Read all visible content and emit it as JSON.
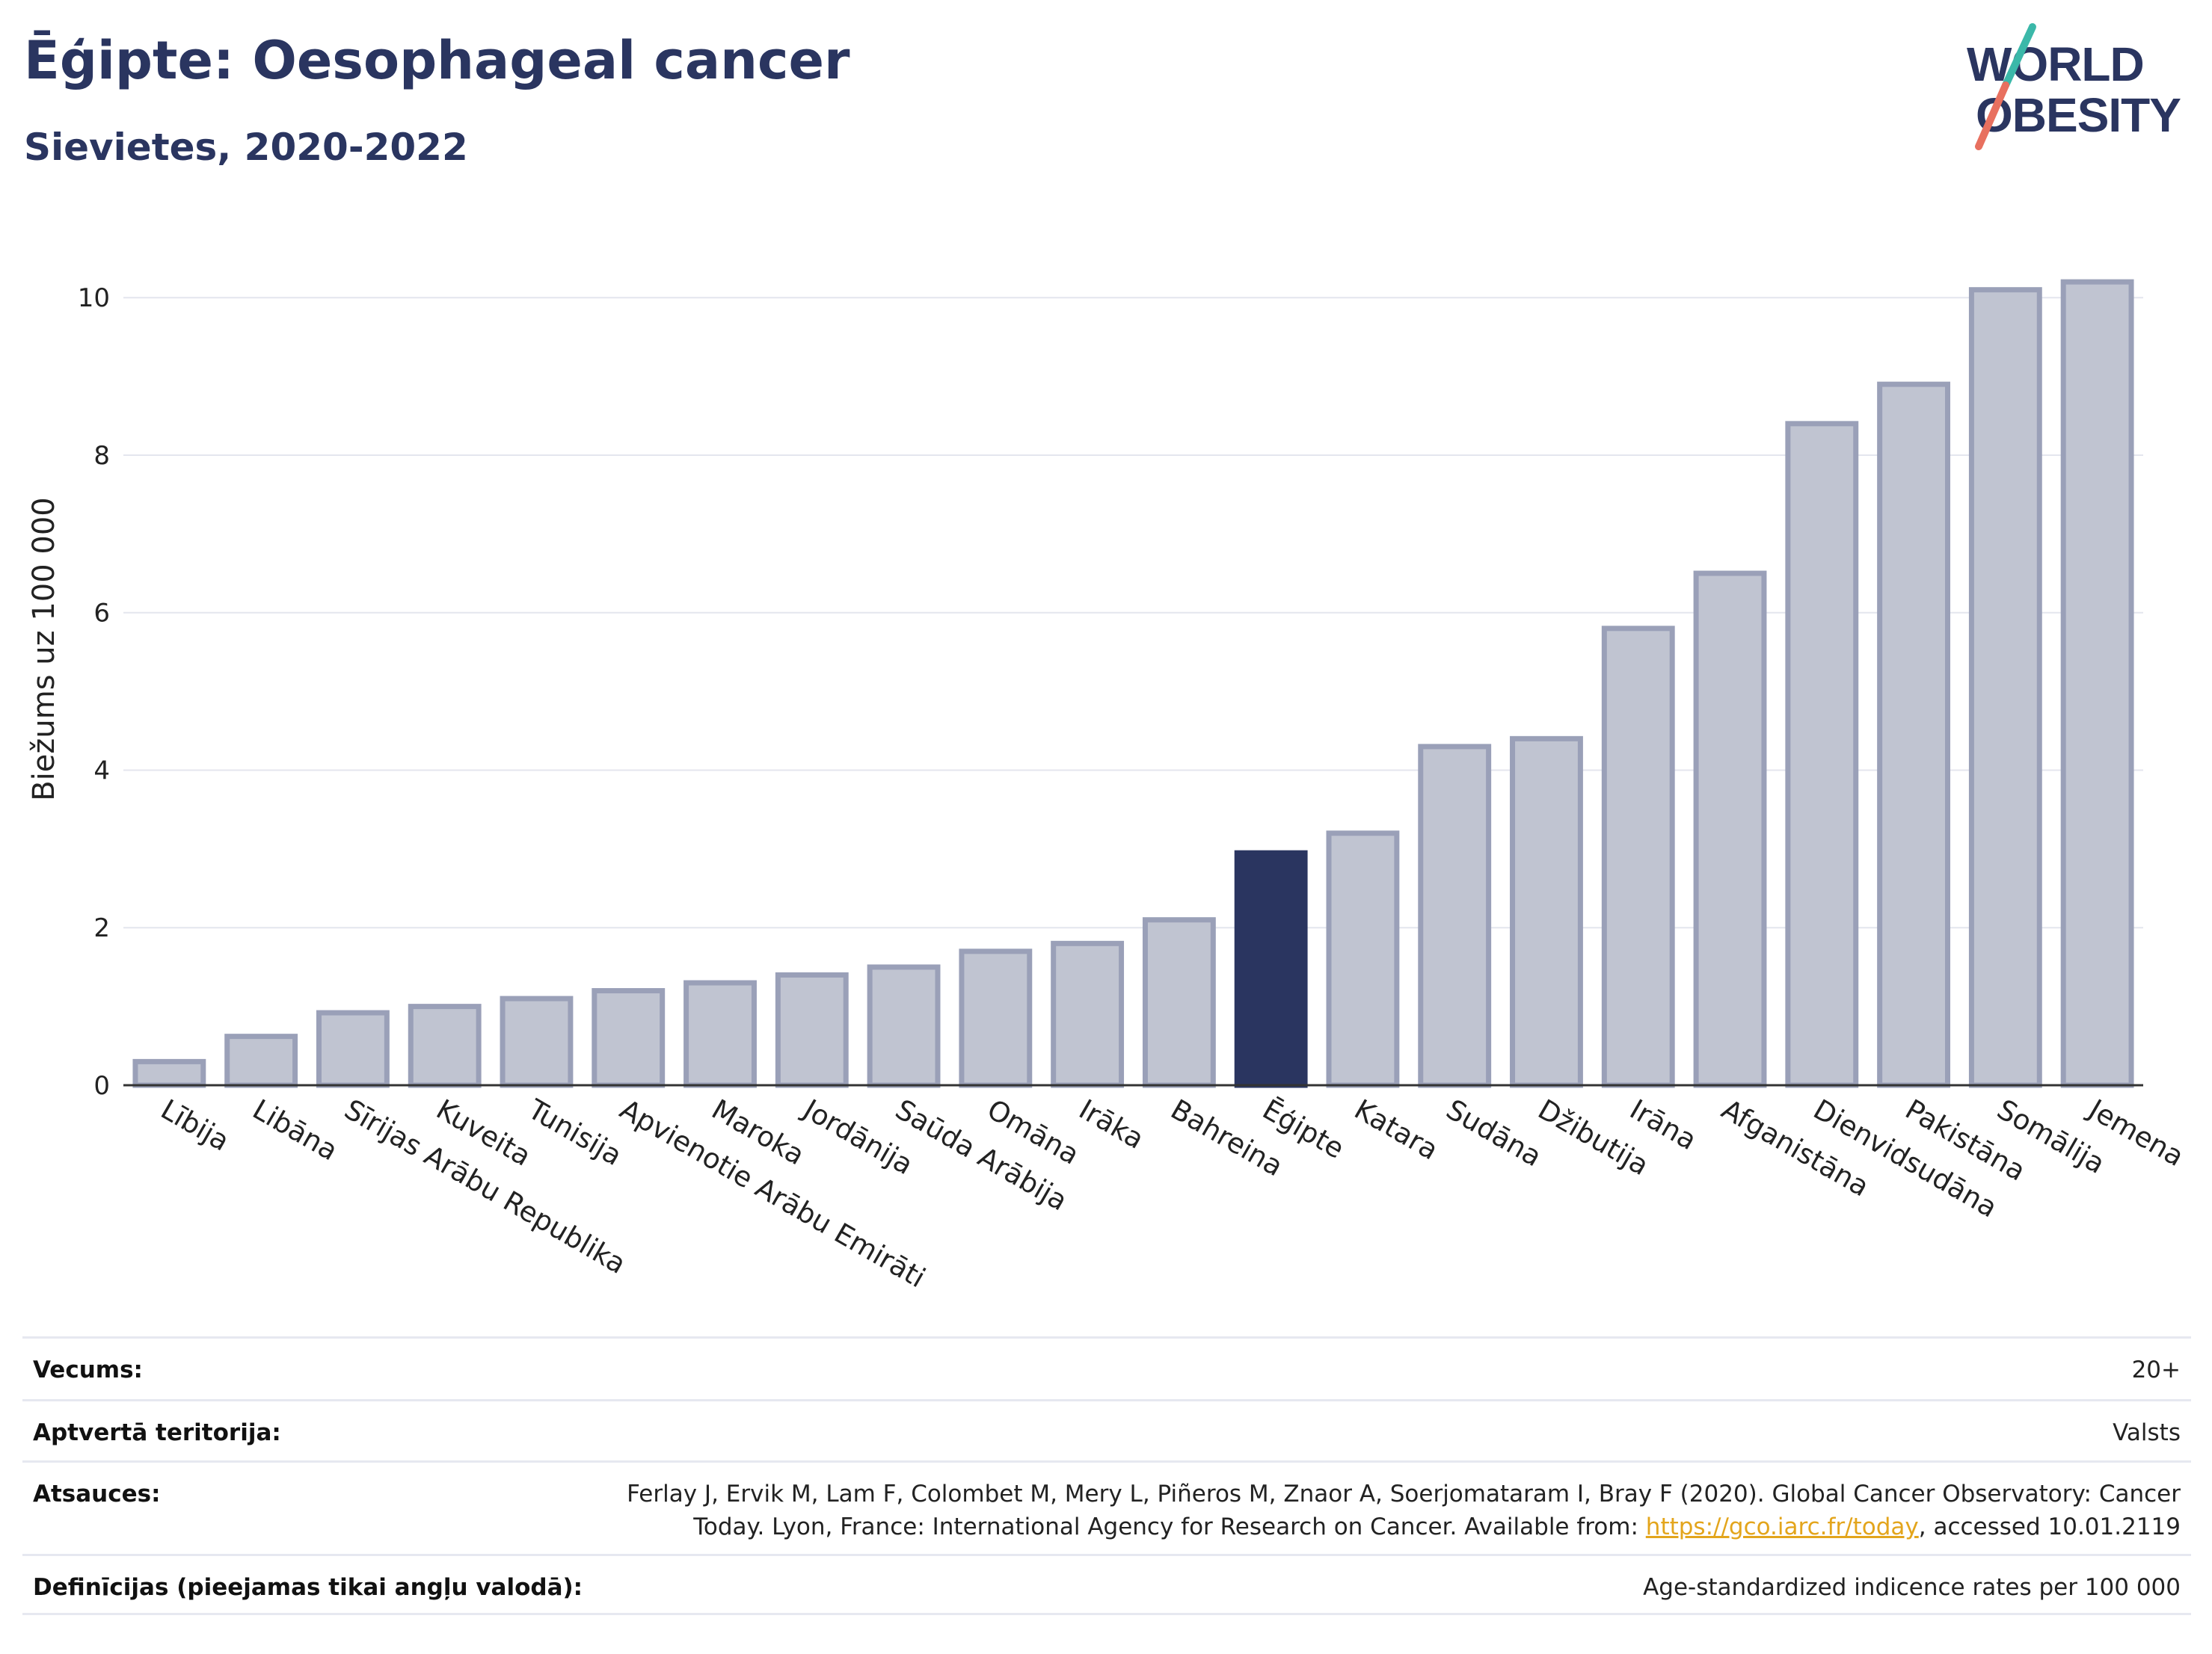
{
  "header": {
    "title": "Ēģipte: Oesophageal cancer",
    "subtitle": "Sievietes, 2020-2022"
  },
  "logo": {
    "line1": "WORLD",
    "line2": "OBESITY",
    "colors": {
      "text": "#2a3560",
      "slash_top": "#3bb8a9",
      "slash_bottom": "#e8705f"
    }
  },
  "chart_data": {
    "type": "bar",
    "title": "Ēģipte: Oesophageal cancer",
    "subtitle": "Sievietes, 2020-2022",
    "ylabel": "Biežums uz 100 000",
    "xlabel": "",
    "ylim": [
      0,
      10.6
    ],
    "yticks": [
      0,
      2,
      4,
      6,
      8,
      10
    ],
    "grid": true,
    "highlight_category": "Ēģipte",
    "colors": {
      "bar": "#c0c4d1",
      "bar_border": "#9aa0b8",
      "highlight": "#2a3560"
    },
    "categories": [
      "Lībija",
      "Libāna",
      "Sīrijas Arābu Republika",
      "Kuveita",
      "Tunisija",
      "Apvienotie Arābu Emirāti",
      "Maroka",
      "Jordānija",
      "Saūda Arābija",
      "Omāna",
      "Irāka",
      "Bahreina",
      "Ēģipte",
      "Katara",
      "Sudāna",
      "Džibutija",
      "Irāna",
      "Afganistāna",
      "Dienvidsudāna",
      "Pakistāna",
      "Somālija",
      "Jemena"
    ],
    "values": [
      0.3,
      0.62,
      0.92,
      1.0,
      1.1,
      1.2,
      1.3,
      1.4,
      1.5,
      1.7,
      1.8,
      2.1,
      2.95,
      3.2,
      4.3,
      4.4,
      5.8,
      6.5,
      8.4,
      8.9,
      10.1,
      10.2
    ]
  },
  "meta": {
    "rows": [
      {
        "label": "Vecums:",
        "value": "20+"
      },
      {
        "label": "Aptvertā teritorija:",
        "value": "Valsts"
      },
      {
        "label": "Atsauces:",
        "value_before": "Ferlay J, Ervik M, Lam F, Colombet M, Mery L, Piñeros M, Znaor A, Soerjomataram I, Bray F (2020). Global Cancer Observatory: Cancer Today. Lyon, France: International Agency for Research on Cancer. Available from: ",
        "link_text": "https://gco.iarc.fr/today",
        "value_after": ", accessed 10.01.2119"
      },
      {
        "label": "Definīcijas (pieejamas tikai angļu valodā):",
        "value": "Age-standardized indicence rates per 100 000"
      }
    ]
  }
}
